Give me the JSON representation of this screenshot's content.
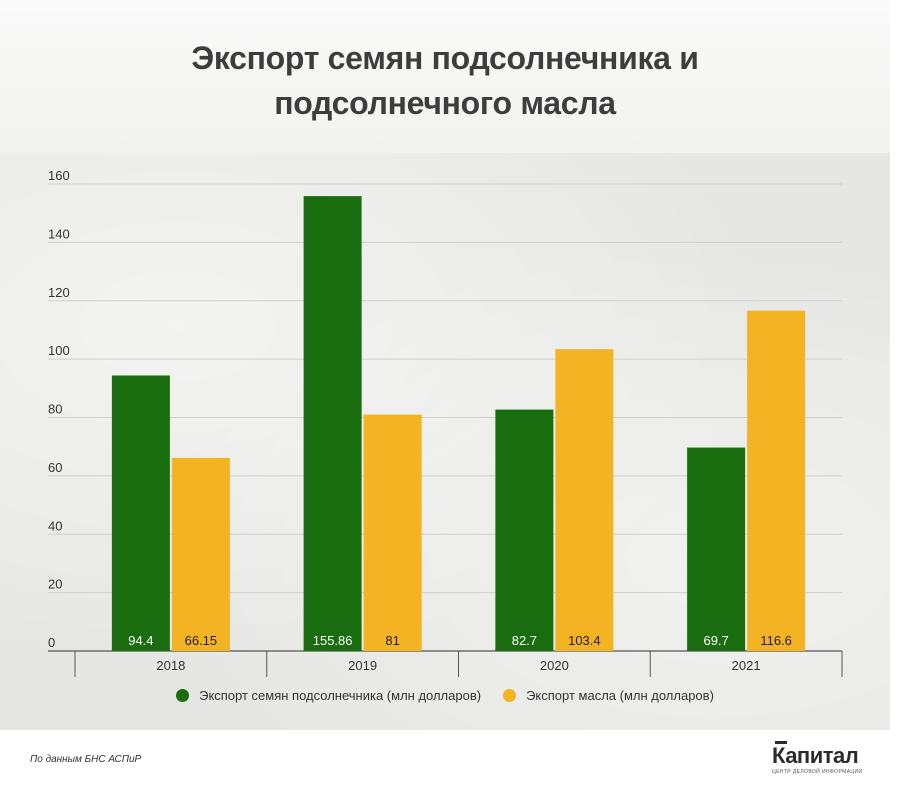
{
  "title_lines": [
    "Экспорт семян подсолнечника и",
    "подсолнечного масла"
  ],
  "source": "По данным БНС АСПиР",
  "logo": {
    "name": "Капитал",
    "tagline": "ЦЕНТР ДЕЛОВОЙ ИНФОРМАЦИИ"
  },
  "colors": {
    "seeds": "#1a6d0f",
    "oil": "#f4b323"
  },
  "chart_data": {
    "type": "bar",
    "title": "Экспорт семян подсолнечника и подсолнечного масла",
    "categories": [
      "2018",
      "2019",
      "2020",
      "2021"
    ],
    "series": [
      {
        "name": "Экспорт семян подсолнечника (млн долларов)",
        "values": [
          94.4,
          155.86,
          82.7,
          69.7
        ],
        "labels": [
          "94.4",
          "155.86",
          "82.7",
          "69.7"
        ]
      },
      {
        "name": "Экспорт масла (млн долларов)",
        "values": [
          66.15,
          81,
          103.4,
          116.6
        ],
        "labels": [
          "66.15",
          "81",
          "103.4",
          "116.6"
        ]
      }
    ],
    "yticks": [
      0,
      20,
      40,
      60,
      80,
      100,
      120,
      140,
      160
    ],
    "ylim": [
      0,
      160
    ],
    "grid": true,
    "legend": "bottom"
  }
}
